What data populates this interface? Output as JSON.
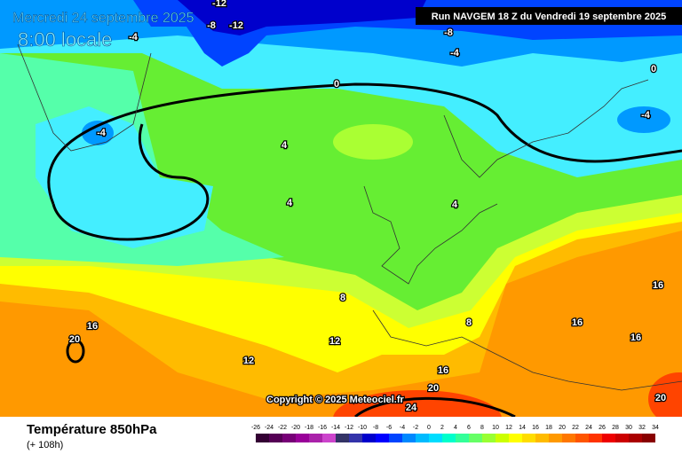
{
  "header": {
    "date": "Mercredi 24 septembre 2025",
    "time": "8:00 locale",
    "run": "Run NAVGEM 18 Z du Vendredi 19 septembre 2025"
  },
  "map": {
    "copyright": "Copyright © 2025 Meteociel.fr",
    "contour_labels": [
      "-12",
      "-8",
      "-12",
      "-4",
      "-8",
      "-4",
      "0",
      "0",
      "-4",
      "4",
      "-4",
      "4",
      "4",
      "8",
      "8",
      "16",
      "12",
      "12",
      "16",
      "16",
      "16",
      "16",
      "20",
      "20",
      "24",
      "20"
    ]
  },
  "footer": {
    "title": "Température 850hPa",
    "lead": "(+ 108h)"
  },
  "legend": {
    "labels": [
      -26,
      -24,
      -22,
      -20,
      -18,
      -16,
      -14,
      -12,
      -10,
      -8,
      -6,
      -4,
      -2,
      0,
      2,
      4,
      6,
      8,
      10,
      12,
      14,
      16,
      18,
      20,
      22,
      24,
      26,
      28,
      30,
      32,
      34
    ],
    "colors": [
      "#330033",
      "#550055",
      "#770077",
      "#990099",
      "#aa22aa",
      "#cc44cc",
      "#333366",
      "#3333aa",
      "#0000cc",
      "#0000ff",
      "#0044ff",
      "#0088ff",
      "#00bbff",
      "#00ddff",
      "#00ffcc",
      "#33ff99",
      "#66ff66",
      "#99ff33",
      "#ccff00",
      "#ffff00",
      "#ffdd00",
      "#ffbb00",
      "#ff9900",
      "#ff7700",
      "#ff5500",
      "#ff3300",
      "#ee0000",
      "#cc0000",
      "#aa0000",
      "#880000"
    ]
  }
}
